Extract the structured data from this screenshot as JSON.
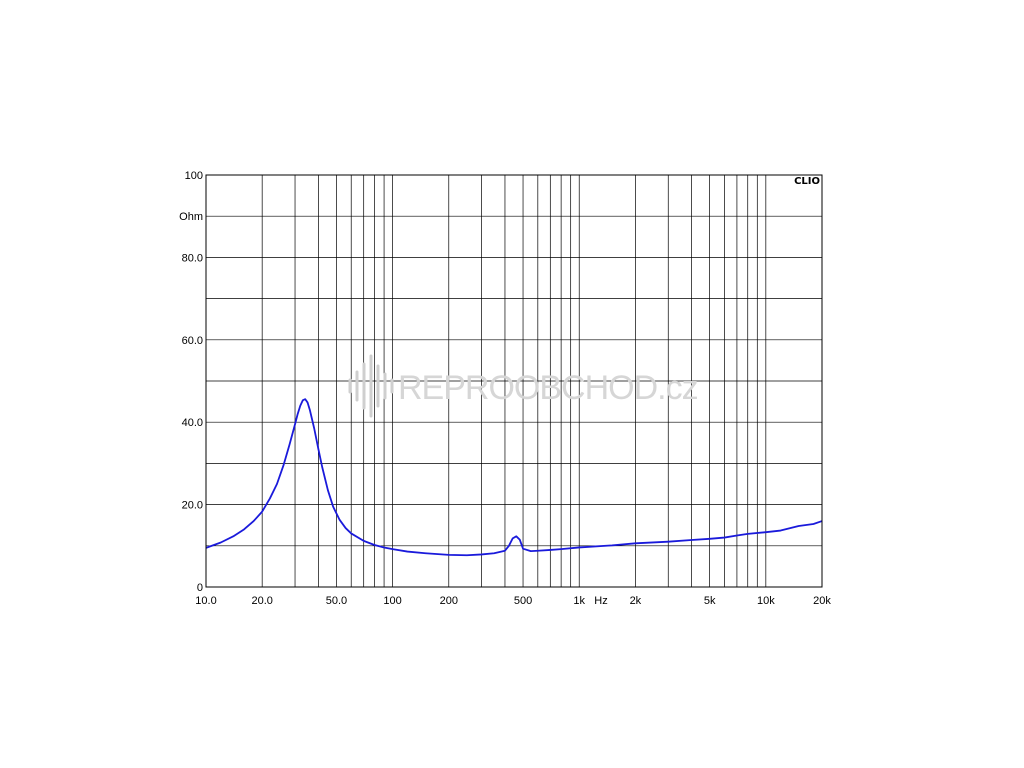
{
  "chart_data": {
    "type": "line",
    "brand": "CLIO",
    "x_scale": "log",
    "xlim": [
      10,
      20000
    ],
    "ylim": [
      0,
      100
    ],
    "grid": true,
    "y_unit": "Ohm",
    "x_unit": "Hz",
    "y_ticks": [
      {
        "value": 0,
        "label": "0"
      },
      {
        "value": 20,
        "label": "20.0"
      },
      {
        "value": 40,
        "label": "40.0"
      },
      {
        "value": 60,
        "label": "60.0"
      },
      {
        "value": 80,
        "label": "80.0"
      },
      {
        "value": 100,
        "label": "100"
      }
    ],
    "x_ticks": [
      {
        "value": 10,
        "label": "10.0"
      },
      {
        "value": 20,
        "label": "20.0"
      },
      {
        "value": 50,
        "label": "50.0"
      },
      {
        "value": 100,
        "label": "100"
      },
      {
        "value": 200,
        "label": "200"
      },
      {
        "value": 500,
        "label": "500"
      },
      {
        "value": 1000,
        "label": "1k"
      },
      {
        "value": 2000,
        "label": "2k"
      },
      {
        "value": 5000,
        "label": "5k"
      },
      {
        "value": 10000,
        "label": "10k"
      },
      {
        "value": 20000,
        "label": "20k"
      }
    ],
    "series": [
      {
        "color": "#1a1adb",
        "x": [
          10,
          12,
          14,
          16,
          18,
          20,
          22,
          24,
          26,
          28,
          30,
          31,
          32,
          33,
          34,
          35,
          36,
          38,
          40,
          42,
          45,
          48,
          52,
          56,
          60,
          70,
          80,
          90,
          100,
          120,
          150,
          200,
          250,
          300,
          350,
          400,
          420,
          440,
          460,
          480,
          500,
          550,
          600,
          700,
          800,
          1000,
          1500,
          2000,
          3000,
          4000,
          5000,
          6000,
          7000,
          8000,
          10000,
          12000,
          15000,
          18000,
          20000
        ],
        "y": [
          9.5,
          10.8,
          12.3,
          14.0,
          16.0,
          18.3,
          21.5,
          25.0,
          29.5,
          34.5,
          39.5,
          42.0,
          44.0,
          45.3,
          45.6,
          44.8,
          43.0,
          38.5,
          33.5,
          29.0,
          23.5,
          19.5,
          16.3,
          14.3,
          13.0,
          11.2,
          10.2,
          9.6,
          9.2,
          8.6,
          8.2,
          7.8,
          7.7,
          7.9,
          8.2,
          8.8,
          10.0,
          11.8,
          12.3,
          11.5,
          9.3,
          8.7,
          8.8,
          9.0,
          9.2,
          9.6,
          10.1,
          10.6,
          11.0,
          11.4,
          11.7,
          12.0,
          12.5,
          12.9,
          13.3,
          13.7,
          14.8,
          15.3,
          16.0
        ]
      }
    ]
  },
  "watermark": {
    "text": "REPROOBCHOD",
    "suffix": ".cz"
  }
}
